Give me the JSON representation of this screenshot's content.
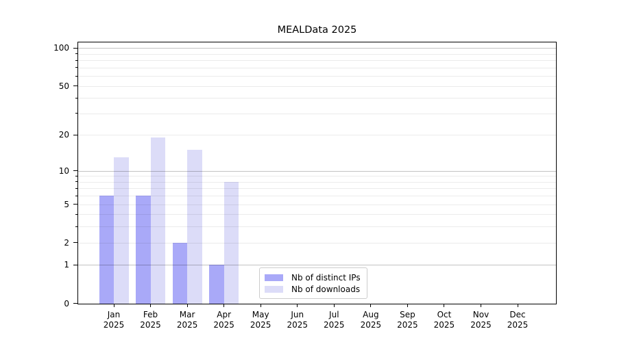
{
  "chart_data": {
    "type": "bar",
    "title": "MEALData 2025",
    "categories": [
      "Jan",
      "Feb",
      "Mar",
      "Apr",
      "May",
      "Jun",
      "Jul",
      "Aug",
      "Sep",
      "Oct",
      "Nov",
      "Dec"
    ],
    "category_year": "2025",
    "series": [
      {
        "name": "Nb of distinct IPs",
        "color": "#a9a9f8",
        "values": [
          6,
          6,
          2,
          1,
          0,
          0,
          0,
          0,
          0,
          0,
          0,
          0
        ]
      },
      {
        "name": "Nb of downloads",
        "color": "#dcdcf8",
        "values": [
          13,
          19,
          15,
          8,
          0,
          0,
          0,
          0,
          0,
          0,
          0,
          0
        ]
      }
    ],
    "y_scale": "log1p",
    "y_ticks": [
      0,
      1,
      2,
      5,
      10,
      20,
      50,
      100
    ],
    "grid_major": [
      1,
      10,
      100
    ],
    "grid_minor": [
      2,
      3,
      4,
      5,
      6,
      7,
      8,
      9,
      20,
      30,
      40,
      50,
      60,
      70,
      80,
      90
    ],
    "ylim": [
      0,
      110
    ],
    "xlabel": "",
    "ylabel": "",
    "grid": "on, drawn over bars",
    "legend_position": "inside bottom-center"
  },
  "colors": {
    "grid_major": "rgba(0,0,0,0.24)",
    "grid_minor": "rgba(0,0,0,0.08)",
    "axis": "#000000",
    "background": "#ffffff",
    "legend_border": "#cccccc"
  }
}
